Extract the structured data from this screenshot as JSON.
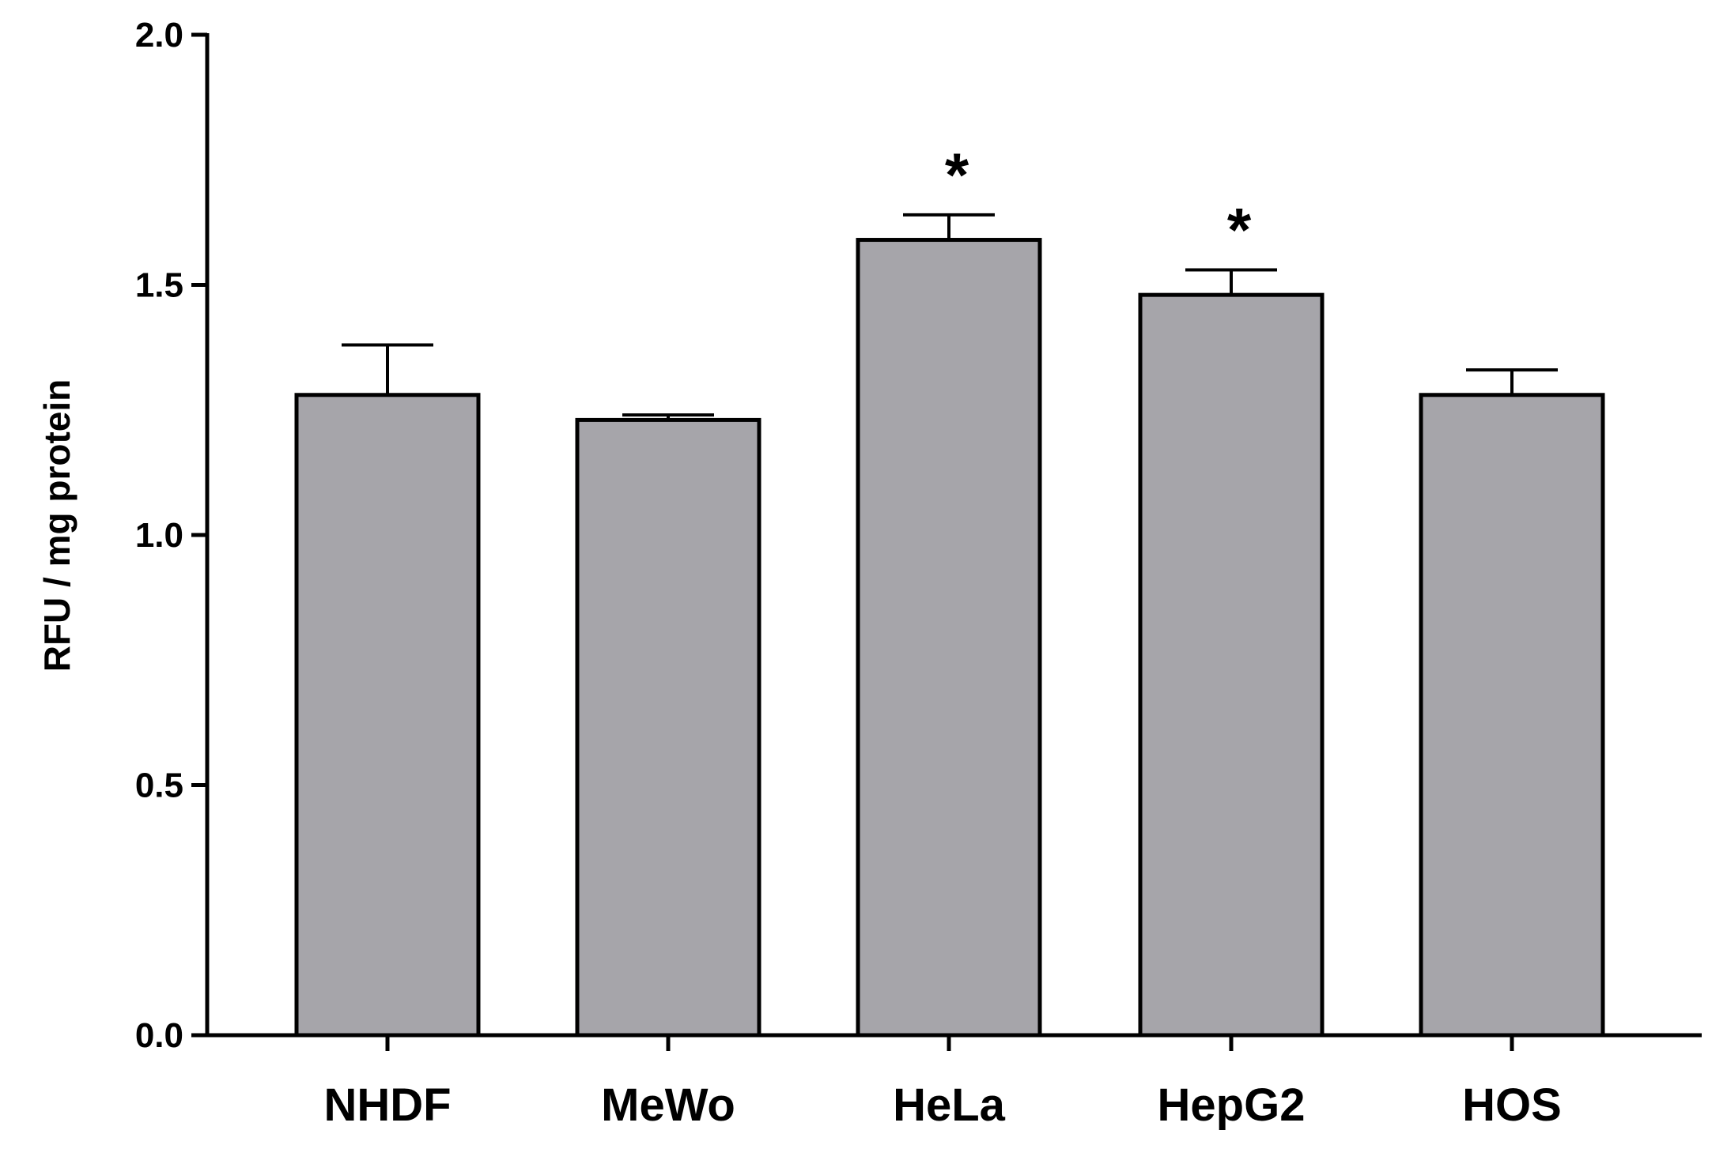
{
  "chart_data": {
    "type": "bar",
    "categories": [
      "NHDF",
      "MeWo",
      "HeLa",
      "HepG2",
      "HOS"
    ],
    "values": [
      1.28,
      1.23,
      1.59,
      1.48,
      1.28
    ],
    "errors": [
      0.1,
      0.01,
      0.05,
      0.05,
      0.05
    ],
    "significance": [
      "",
      "",
      "*",
      "*",
      ""
    ],
    "ylabel": "RFU / mg protein",
    "xlabel": "",
    "ylim": [
      0,
      2.0
    ],
    "yticks": [
      "0.0",
      "0.5",
      "1.0",
      "1.5",
      "2.0"
    ],
    "grid": false,
    "bar_color": "#a6a5aa",
    "edge_color": "#000000"
  }
}
